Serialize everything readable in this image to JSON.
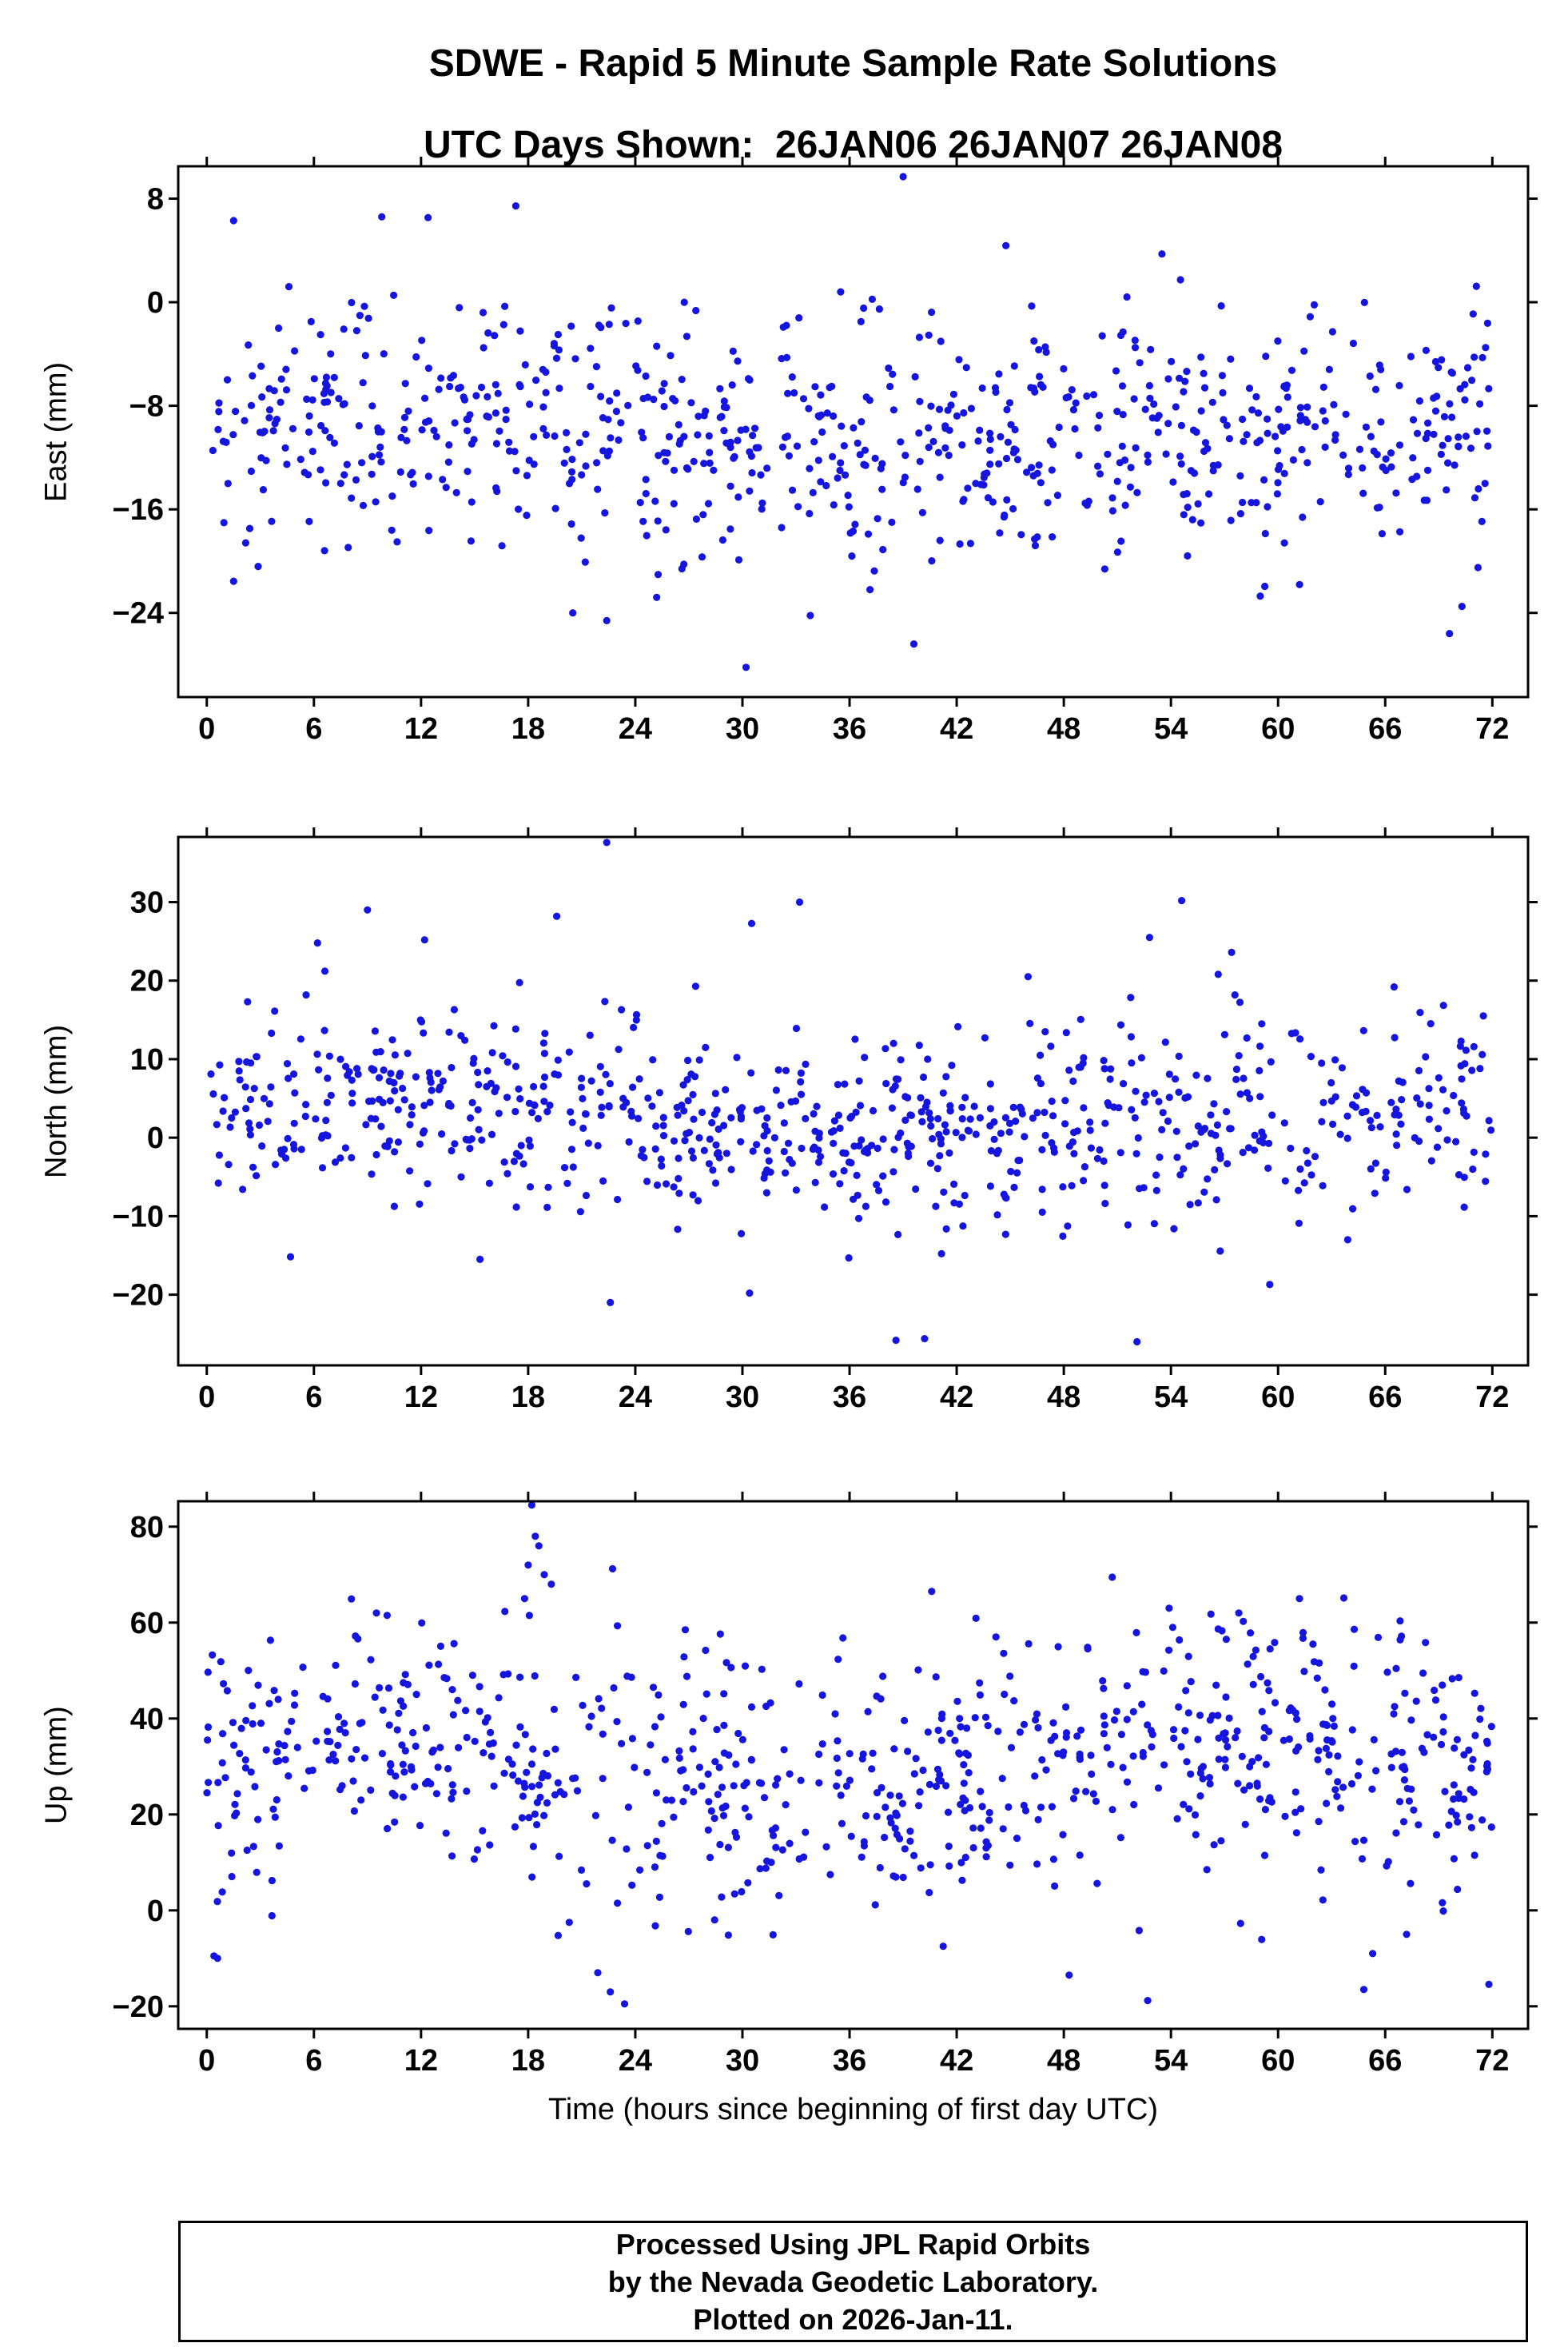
{
  "title": {
    "line1": "SDWE - Rapid 5 Minute Sample Rate Solutions",
    "line2": "UTC Days Shown:  26JAN06 26JAN07 26JAN08"
  },
  "xlabel": "Time (hours since beginning of first day UTC)",
  "footer": {
    "line1": "Processed Using JPL Rapid Orbits",
    "line2": "by the Nevada Geodetic Laboratory.",
    "line3": "Plotted on 2026-Jan-11."
  },
  "style": {
    "point_color": "#1515dd",
    "point_radius": 4.6,
    "axis_color": "#000000",
    "tick_len": 12,
    "stroke_width": 3
  },
  "chart_data": [
    {
      "type": "scatter",
      "panel": "East",
      "ylabel": "East (mm)",
      "xlim": [
        -1.6,
        74
      ],
      "ylim": [
        -30.5,
        10.5
      ],
      "xticks": [
        0,
        6,
        12,
        18,
        24,
        30,
        36,
        42,
        48,
        54,
        60,
        66,
        72
      ],
      "yticks": [
        8,
        0,
        -8,
        -16,
        -24
      ],
      "n_points": 780,
      "seed": 101,
      "mean": -10,
      "sd": 4.8,
      "wander": 1.2,
      "wander_period": 9,
      "clip": [
        -23.5,
        3.5
      ],
      "outliers": [
        [
          1.5,
          6.3
        ],
        [
          9.8,
          6.6
        ],
        [
          39.0,
          9.7
        ],
        [
          30.2,
          -28.2
        ],
        [
          22.4,
          -24.6
        ],
        [
          69.6,
          -25.6
        ],
        [
          39.6,
          -26.4
        ],
        [
          33.8,
          -24.2
        ],
        [
          20.5,
          -24.0
        ],
        [
          70.3,
          -23.5
        ],
        [
          4.6,
          1.2
        ],
        [
          35.5,
          0.8
        ],
        [
          46.2,
          -0.3
        ],
        [
          59.0,
          -22.7
        ],
        [
          71.2,
          -20.5
        ],
        [
          25.2,
          -22.8
        ]
      ],
      "summary": "East residuals in mm vs time over 3 days; most points between -20 and 0 mm, mean about -10 mm"
    },
    {
      "type": "scatter",
      "panel": "North",
      "ylabel": "North (mm)",
      "xlim": [
        -1.6,
        74
      ],
      "ylim": [
        -29,
        38.3
      ],
      "xticks": [
        0,
        6,
        12,
        18,
        24,
        30,
        36,
        42,
        48,
        54,
        60,
        66,
        72
      ],
      "yticks": [
        30,
        20,
        10,
        0,
        -10,
        -20
      ],
      "n_points": 790,
      "seed": 202,
      "mean": 2.5,
      "sd": 6.2,
      "wander": 2,
      "wander_period": 8,
      "clip": [
        -14,
        20
      ],
      "outliers": [
        [
          22.4,
          37.6
        ],
        [
          9.0,
          29.0
        ],
        [
          12.2,
          25.2
        ],
        [
          19.6,
          28.2
        ],
        [
          33.2,
          30.0
        ],
        [
          54.6,
          30.2
        ],
        [
          52.1,
          -26.0
        ],
        [
          40.2,
          -25.6
        ],
        [
          22.6,
          -21.0
        ],
        [
          30.4,
          -19.8
        ],
        [
          57.4,
          23.6
        ],
        [
          52.8,
          25.5
        ],
        [
          63.9,
          -13.0
        ],
        [
          6.2,
          24.8
        ],
        [
          15.3,
          -15.5
        ],
        [
          38.6,
          -25.8
        ],
        [
          46.0,
          20.5
        ],
        [
          66.5,
          19.2
        ],
        [
          71.5,
          15.5
        ]
      ],
      "summary": "North residuals in mm vs time; scatter centered near +3 mm, spread roughly -12 to +15 mm with outliers to +/-30 mm"
    },
    {
      "type": "scatter",
      "panel": "Up",
      "ylabel": "Up (mm)",
      "xlim": [
        -1.6,
        74
      ],
      "ylim": [
        -24.7,
        85.3
      ],
      "xticks": [
        0,
        6,
        12,
        18,
        24,
        30,
        36,
        42,
        48,
        54,
        60,
        66,
        72
      ],
      "yticks": [
        80,
        60,
        40,
        20,
        0,
        -20
      ],
      "n_points": 800,
      "seed": 303,
      "mean": 30,
      "sd": 13.5,
      "wander": 5,
      "wander_period": 7.5,
      "clip": [
        -5,
        62
      ],
      "outliers": [
        [
          18.2,
          84.5
        ],
        [
          18.4,
          78.0
        ],
        [
          18.6,
          76.0
        ],
        [
          18.0,
          72.0
        ],
        [
          18.9,
          70.0
        ],
        [
          19.3,
          68.0
        ],
        [
          17.8,
          65.0
        ],
        [
          22.6,
          -17.0
        ],
        [
          23.4,
          -19.5
        ],
        [
          21.9,
          -13.0
        ],
        [
          48.3,
          -13.5
        ],
        [
          64.8,
          -16.5
        ],
        [
          65.3,
          -9.0
        ],
        [
          40.6,
          66.5
        ],
        [
          57.8,
          62.0
        ],
        [
          61.2,
          65.0
        ],
        [
          0.4,
          -9.5
        ],
        [
          0.6,
          -10.0
        ],
        [
          53.9,
          63.0
        ],
        [
          54.1,
          59.0
        ],
        [
          9.5,
          62.0
        ],
        [
          10.1,
          61.5
        ],
        [
          26.8,
          58.5
        ],
        [
          44.2,
          57.0
        ],
        [
          20.3,
          -2.5
        ],
        [
          23.0,
          1.5
        ],
        [
          52.7,
          -18.8
        ]
      ],
      "summary": "Up residuals in mm vs time; scatter centered near +30 mm, spread roughly 0 to 60 mm with excursions to +85 and -20 mm"
    }
  ],
  "layout_note": "Three stacked scatter panels sharing x axis 0-72 hours"
}
